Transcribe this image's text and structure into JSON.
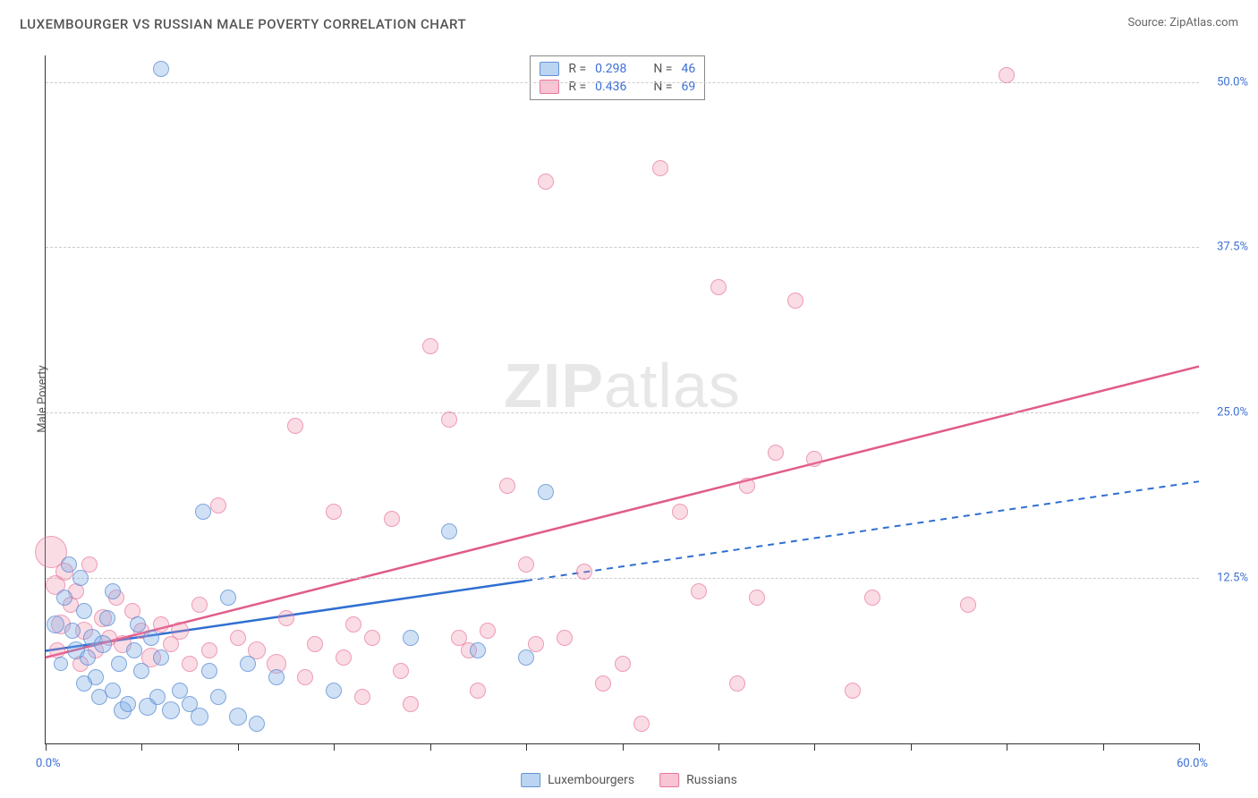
{
  "title": "LUXEMBOURGER VS RUSSIAN MALE POVERTY CORRELATION CHART",
  "source_label": "Source: ZipAtlas.com",
  "y_axis_label": "Male Poverty",
  "watermark": {
    "part1": "ZIP",
    "part2": "atlas"
  },
  "chart": {
    "type": "scatter",
    "background_color": "#ffffff",
    "grid_color": "#cccccc",
    "grid_dash": "4,4",
    "axis_color": "#333333",
    "tick_label_color": "#3b6fd4",
    "tick_fontsize": 13,
    "xlim": [
      0,
      60
    ],
    "ylim": [
      0,
      52
    ],
    "x_tick_positions": [
      0,
      5,
      10,
      15,
      20,
      25,
      30,
      35,
      40,
      45,
      50,
      55,
      60
    ],
    "x_tick_labels": {
      "min": "0.0%",
      "max": "60.0%"
    },
    "y_gridlines": [
      12.5,
      25.0,
      37.5,
      50.0
    ],
    "y_tick_labels": [
      "12.5%",
      "25.0%",
      "37.5%",
      "50.0%"
    ],
    "marker_radius_default": 9,
    "series": [
      {
        "name": "Luxembourgers",
        "color_fill": "rgba(120,170,230,0.35)",
        "color_stroke": "rgba(90,140,210,0.7)",
        "correlation_R": 0.298,
        "N": 46,
        "trend": {
          "color": "#2f6fd1",
          "width": 2.5,
          "solid_segment": {
            "x1": 0,
            "y1": 7.0,
            "x2": 25,
            "y2": 12.3
          },
          "dashed_segment": {
            "x1": 25,
            "y1": 12.3,
            "x2": 60,
            "y2": 19.8
          },
          "dash_pattern": "7,6"
        },
        "points": [
          {
            "x": 0.5,
            "y": 9.0,
            "r": 10
          },
          {
            "x": 0.8,
            "y": 6.0,
            "r": 8
          },
          {
            "x": 1.0,
            "y": 11.0,
            "r": 9
          },
          {
            "x": 1.2,
            "y": 13.5,
            "r": 9
          },
          {
            "x": 1.4,
            "y": 8.5,
            "r": 9
          },
          {
            "x": 1.6,
            "y": 7.0,
            "r": 10
          },
          {
            "x": 1.8,
            "y": 12.5,
            "r": 9
          },
          {
            "x": 2.0,
            "y": 10.0,
            "r": 9
          },
          {
            "x": 2.2,
            "y": 6.5,
            "r": 9
          },
          {
            "x": 2.4,
            "y": 8.0,
            "r": 10
          },
          {
            "x": 2.6,
            "y": 5.0,
            "r": 9
          },
          {
            "x": 2.8,
            "y": 3.5,
            "r": 9
          },
          {
            "x": 3.0,
            "y": 7.5,
            "r": 10
          },
          {
            "x": 3.2,
            "y": 9.5,
            "r": 9
          },
          {
            "x": 3.5,
            "y": 4.0,
            "r": 9
          },
          {
            "x": 3.8,
            "y": 6.0,
            "r": 9
          },
          {
            "x": 4.0,
            "y": 2.5,
            "r": 10
          },
          {
            "x": 4.3,
            "y": 3.0,
            "r": 9
          },
          {
            "x": 4.6,
            "y": 7.0,
            "r": 9
          },
          {
            "x": 5.0,
            "y": 5.5,
            "r": 9
          },
          {
            "x": 5.3,
            "y": 2.8,
            "r": 10
          },
          {
            "x": 5.5,
            "y": 8.0,
            "r": 9
          },
          {
            "x": 5.8,
            "y": 3.5,
            "r": 9
          },
          {
            "x": 6.0,
            "y": 6.5,
            "r": 9
          },
          {
            "x": 6.5,
            "y": 2.5,
            "r": 10
          },
          {
            "x": 7.0,
            "y": 4.0,
            "r": 9
          },
          {
            "x": 7.5,
            "y": 3.0,
            "r": 9
          },
          {
            "x": 8.0,
            "y": 2.0,
            "r": 10
          },
          {
            "x": 8.2,
            "y": 17.5,
            "r": 9
          },
          {
            "x": 8.5,
            "y": 5.5,
            "r": 9
          },
          {
            "x": 9.0,
            "y": 3.5,
            "r": 9
          },
          {
            "x": 9.5,
            "y": 11.0,
            "r": 9
          },
          {
            "x": 10.0,
            "y": 2.0,
            "r": 10
          },
          {
            "x": 10.5,
            "y": 6.0,
            "r": 9
          },
          {
            "x": 11.0,
            "y": 1.5,
            "r": 9
          },
          {
            "x": 12.0,
            "y": 5.0,
            "r": 9
          },
          {
            "x": 15.0,
            "y": 4.0,
            "r": 9
          },
          {
            "x": 19.0,
            "y": 8.0,
            "r": 9
          },
          {
            "x": 21.0,
            "y": 16.0,
            "r": 9
          },
          {
            "x": 22.5,
            "y": 7.0,
            "r": 9
          },
          {
            "x": 25.0,
            "y": 6.5,
            "r": 9
          },
          {
            "x": 26.0,
            "y": 19.0,
            "r": 9
          },
          {
            "x": 6.0,
            "y": 51.0,
            "r": 9
          },
          {
            "x": 3.5,
            "y": 11.5,
            "r": 9
          },
          {
            "x": 2.0,
            "y": 4.5,
            "r": 9
          },
          {
            "x": 4.8,
            "y": 9.0,
            "r": 9
          }
        ]
      },
      {
        "name": "Russians",
        "color_fill": "rgba(240,140,170,0.30)",
        "color_stroke": "rgba(230,110,150,0.6)",
        "correlation_R": 0.436,
        "N": 69,
        "trend": {
          "color": "#e15b8a",
          "width": 2.5,
          "solid_segment": {
            "x1": 0,
            "y1": 6.5,
            "x2": 60,
            "y2": 28.5
          },
          "dashed_segment": null,
          "dash_pattern": null
        },
        "points": [
          {
            "x": 0.3,
            "y": 14.5,
            "r": 18
          },
          {
            "x": 0.5,
            "y": 12.0,
            "r": 11
          },
          {
            "x": 0.8,
            "y": 9.0,
            "r": 11
          },
          {
            "x": 1.0,
            "y": 13.0,
            "r": 10
          },
          {
            "x": 1.3,
            "y": 10.5,
            "r": 9
          },
          {
            "x": 1.6,
            "y": 11.5,
            "r": 9
          },
          {
            "x": 2.0,
            "y": 8.5,
            "r": 10
          },
          {
            "x": 2.3,
            "y": 13.5,
            "r": 9
          },
          {
            "x": 2.6,
            "y": 7.0,
            "r": 9
          },
          {
            "x": 3.0,
            "y": 9.5,
            "r": 10
          },
          {
            "x": 3.3,
            "y": 8.0,
            "r": 9
          },
          {
            "x": 3.7,
            "y": 11.0,
            "r": 9
          },
          {
            "x": 4.0,
            "y": 7.5,
            "r": 10
          },
          {
            "x": 4.5,
            "y": 10.0,
            "r": 9
          },
          {
            "x": 5.0,
            "y": 8.5,
            "r": 9
          },
          {
            "x": 5.5,
            "y": 6.5,
            "r": 11
          },
          {
            "x": 6.0,
            "y": 9.0,
            "r": 9
          },
          {
            "x": 6.5,
            "y": 7.5,
            "r": 9
          },
          {
            "x": 7.0,
            "y": 8.5,
            "r": 10
          },
          {
            "x": 7.5,
            "y": 6.0,
            "r": 9
          },
          {
            "x": 8.0,
            "y": 10.5,
            "r": 9
          },
          {
            "x": 8.5,
            "y": 7.0,
            "r": 9
          },
          {
            "x": 9.0,
            "y": 18.0,
            "r": 9
          },
          {
            "x": 10.0,
            "y": 8.0,
            "r": 9
          },
          {
            "x": 11.0,
            "y": 7.0,
            "r": 10
          },
          {
            "x": 12.0,
            "y": 6.0,
            "r": 11
          },
          {
            "x": 12.5,
            "y": 9.5,
            "r": 9
          },
          {
            "x": 13.0,
            "y": 24.0,
            "r": 9
          },
          {
            "x": 14.0,
            "y": 7.5,
            "r": 9
          },
          {
            "x": 15.0,
            "y": 17.5,
            "r": 9
          },
          {
            "x": 15.5,
            "y": 6.5,
            "r": 9
          },
          {
            "x": 16.0,
            "y": 9.0,
            "r": 9
          },
          {
            "x": 16.5,
            "y": 3.5,
            "r": 9
          },
          {
            "x": 17.0,
            "y": 8.0,
            "r": 9
          },
          {
            "x": 18.0,
            "y": 17.0,
            "r": 9
          },
          {
            "x": 18.5,
            "y": 5.5,
            "r": 9
          },
          {
            "x": 19.0,
            "y": 3.0,
            "r": 9
          },
          {
            "x": 20.0,
            "y": 30.0,
            "r": 9
          },
          {
            "x": 21.0,
            "y": 24.5,
            "r": 9
          },
          {
            "x": 21.5,
            "y": 8.0,
            "r": 9
          },
          {
            "x": 22.0,
            "y": 7.0,
            "r": 9
          },
          {
            "x": 22.5,
            "y": 4.0,
            "r": 9
          },
          {
            "x": 23.0,
            "y": 8.5,
            "r": 9
          },
          {
            "x": 24.0,
            "y": 19.5,
            "r": 9
          },
          {
            "x": 25.0,
            "y": 13.5,
            "r": 9
          },
          {
            "x": 25.5,
            "y": 7.5,
            "r": 9
          },
          {
            "x": 26.0,
            "y": 42.5,
            "r": 9
          },
          {
            "x": 27.0,
            "y": 8.0,
            "r": 9
          },
          {
            "x": 28.0,
            "y": 13.0,
            "r": 9
          },
          {
            "x": 29.0,
            "y": 4.5,
            "r": 9
          },
          {
            "x": 30.0,
            "y": 6.0,
            "r": 9
          },
          {
            "x": 31.0,
            "y": 1.5,
            "r": 9
          },
          {
            "x": 32.0,
            "y": 43.5,
            "r": 9
          },
          {
            "x": 33.0,
            "y": 17.5,
            "r": 9
          },
          {
            "x": 34.0,
            "y": 11.5,
            "r": 9
          },
          {
            "x": 35.0,
            "y": 34.5,
            "r": 9
          },
          {
            "x": 36.0,
            "y": 4.5,
            "r": 9
          },
          {
            "x": 36.5,
            "y": 19.5,
            "r": 9
          },
          {
            "x": 37.0,
            "y": 11.0,
            "r": 9
          },
          {
            "x": 38.0,
            "y": 22.0,
            "r": 9
          },
          {
            "x": 39.0,
            "y": 33.5,
            "r": 9
          },
          {
            "x": 40.0,
            "y": 21.5,
            "r": 9
          },
          {
            "x": 42.0,
            "y": 4.0,
            "r": 9
          },
          {
            "x": 43.0,
            "y": 11.0,
            "r": 9
          },
          {
            "x": 48.0,
            "y": 10.5,
            "r": 9
          },
          {
            "x": 50.0,
            "y": 50.5,
            "r": 9
          },
          {
            "x": 0.6,
            "y": 7.0,
            "r": 9
          },
          {
            "x": 1.8,
            "y": 6.0,
            "r": 9
          },
          {
            "x": 13.5,
            "y": 5.0,
            "r": 9
          }
        ]
      }
    ]
  },
  "correlation_legend": {
    "rows": [
      {
        "swatch": "blue",
        "R_label": "R =",
        "R_value": "0.298",
        "N_label": "N =",
        "N_value": "46"
      },
      {
        "swatch": "pink",
        "R_label": "R =",
        "R_value": "0.436",
        "N_label": "N =",
        "N_value": "69"
      }
    ]
  },
  "bottom_legend": {
    "items": [
      {
        "swatch": "blue",
        "label": "Luxembourgers"
      },
      {
        "swatch": "pink",
        "label": "Russians"
      }
    ]
  }
}
